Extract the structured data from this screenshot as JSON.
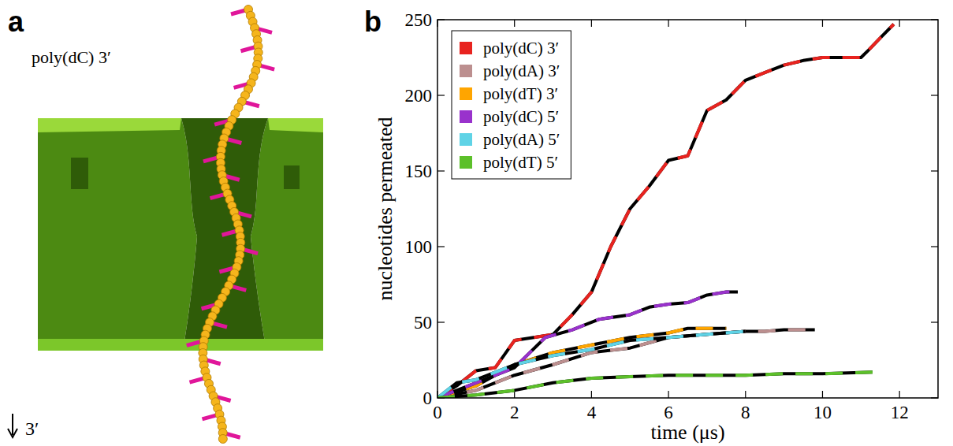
{
  "panel_a": {
    "letter": "a",
    "label": "poly(dC) 3′",
    "direction_label": "3′"
  },
  "panel_b": {
    "letter": "b"
  },
  "chart_data": {
    "type": "line",
    "x_label": "time (μs)",
    "y_label": "nucleotides permeated",
    "xlim": [
      0,
      13
    ],
    "ylim": [
      0,
      250
    ],
    "xticks": [
      0,
      2,
      4,
      6,
      8,
      10,
      12
    ],
    "yticks": [
      0,
      50,
      100,
      150,
      200,
      250
    ],
    "legend": "upper left",
    "series": [
      {
        "name": "poly(dC) 3′",
        "color": "#e8231f",
        "x": [
          0,
          0.5,
          1,
          1.5,
          2,
          2.5,
          3,
          3.5,
          4,
          4.5,
          5,
          5.5,
          6,
          6.5,
          7,
          7.5,
          8,
          8.5,
          9,
          9.5,
          10,
          10.5,
          11,
          11.2,
          11.5,
          11.85
        ],
        "values": [
          0,
          8,
          18,
          20,
          38,
          40,
          42,
          55,
          70,
          100,
          125,
          140,
          157,
          160,
          190,
          197,
          210,
          215,
          220,
          223,
          225,
          225,
          225,
          230,
          238,
          247
        ]
      },
      {
        "name": "poly(dA) 3′",
        "color": "#bc8f8f",
        "x": [
          0,
          1,
          2,
          3,
          4,
          5,
          6,
          7,
          8,
          8.5,
          9,
          9.8
        ],
        "values": [
          0,
          5,
          15,
          22,
          30,
          33,
          40,
          42,
          44,
          44,
          45,
          45
        ]
      },
      {
        "name": "poly(dT) 3′",
        "color": "#ffa500",
        "x": [
          0,
          1,
          2,
          3,
          4,
          5,
          6,
          6.5,
          7,
          7.5
        ],
        "values": [
          0,
          8,
          22,
          30,
          35,
          40,
          43,
          46,
          46,
          46
        ]
      },
      {
        "name": "poly(dC) 5′",
        "color": "#9932cc",
        "x": [
          0,
          1,
          2,
          2.8,
          3.5,
          4.2,
          5,
          5.5,
          6,
          6.5,
          7,
          7.5,
          7.8
        ],
        "values": [
          0,
          10,
          20,
          40,
          45,
          52,
          55,
          60,
          62,
          63,
          68,
          70,
          70
        ]
      },
      {
        "name": "poly(dA) 5′",
        "color": "#5fd3e6",
        "x": [
          0,
          0.5,
          1,
          2,
          3,
          4,
          5,
          6,
          7,
          8
        ],
        "values": [
          0,
          10,
          12,
          22,
          28,
          32,
          38,
          40,
          42,
          44
        ]
      },
      {
        "name": "poly(dT) 5′",
        "color": "#5cc02a",
        "x": [
          0,
          1,
          2,
          3,
          4,
          5,
          6,
          7,
          8,
          9,
          10,
          11.3
        ],
        "values": [
          0,
          2,
          5,
          10,
          13,
          14,
          15,
          15,
          15,
          16,
          16,
          17
        ]
      }
    ]
  }
}
